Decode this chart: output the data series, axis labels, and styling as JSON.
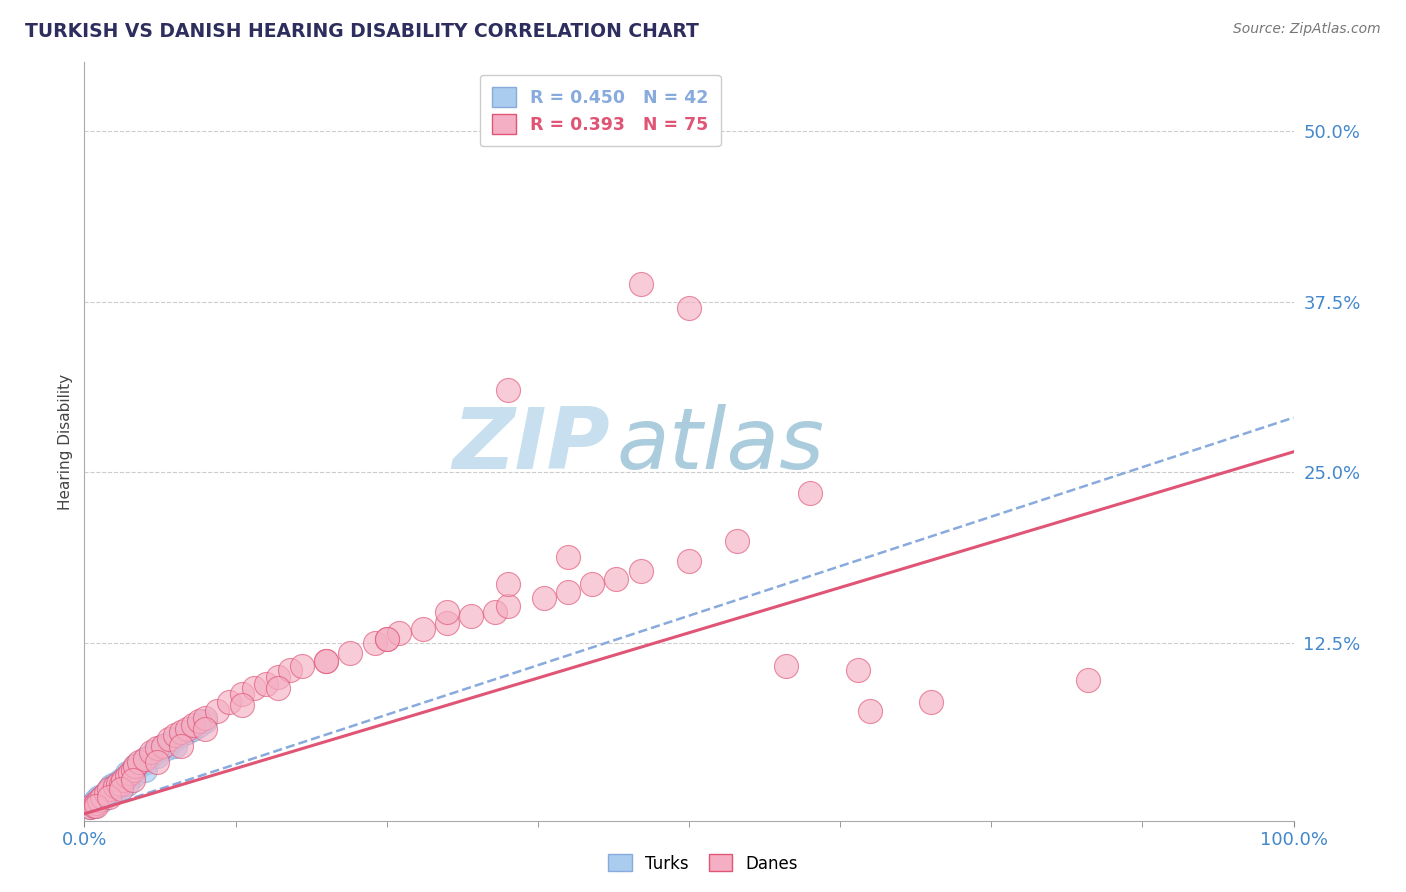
{
  "title": "TURKISH VS DANISH HEARING DISABILITY CORRELATION CHART",
  "title_color": "#2d2d5e",
  "source_text": "Source: ZipAtlas.com",
  "ylabel": "Hearing Disability",
  "xlim": [
    0,
    1.0
  ],
  "ylim": [
    -0.005,
    0.55
  ],
  "yticks": [
    0.0,
    0.125,
    0.25,
    0.375,
    0.5
  ],
  "ytick_labels": [
    "",
    "12.5%",
    "25.0%",
    "37.5%",
    "50.0%"
  ],
  "xtick_labels": [
    "0.0%",
    "100.0%"
  ],
  "legend_r1": "R = 0.450",
  "legend_n1": "N = 42",
  "legend_r2": "R = 0.393",
  "legend_n2": "N = 75",
  "turks_color": "#aaccee",
  "danes_color": "#f4afc4",
  "trendline_turks_color": "#88aadd",
  "trendline_danes_color": "#e05575",
  "background_color": "#ffffff",
  "watermark_zip_color": "#c8dff0",
  "watermark_atlas_color": "#aaccdd",
  "grid_color": "#cccccc",
  "tick_color": "#4488cc",
  "turks_x": [
    0.005,
    0.008,
    0.01,
    0.012,
    0.015,
    0.018,
    0.02,
    0.022,
    0.025,
    0.028,
    0.03,
    0.032,
    0.035,
    0.038,
    0.04,
    0.042,
    0.045,
    0.048,
    0.05,
    0.052,
    0.055,
    0.058,
    0.06,
    0.065,
    0.068,
    0.07,
    0.075,
    0.08,
    0.085,
    0.09,
    0.095,
    0.1,
    0.008,
    0.015,
    0.022,
    0.03,
    0.04,
    0.05,
    0.06,
    0.075,
    0.01,
    0.035
  ],
  "turks_y": [
    0.005,
    0.008,
    0.01,
    0.012,
    0.012,
    0.015,
    0.018,
    0.02,
    0.022,
    0.02,
    0.025,
    0.025,
    0.03,
    0.03,
    0.032,
    0.035,
    0.035,
    0.038,
    0.04,
    0.038,
    0.042,
    0.045,
    0.045,
    0.05,
    0.048,
    0.052,
    0.055,
    0.058,
    0.06,
    0.062,
    0.065,
    0.068,
    0.006,
    0.01,
    0.015,
    0.02,
    0.028,
    0.032,
    0.042,
    0.05,
    0.008,
    0.022
  ],
  "danes_x": [
    0.005,
    0.008,
    0.01,
    0.012,
    0.015,
    0.018,
    0.02,
    0.025,
    0.028,
    0.03,
    0.032,
    0.035,
    0.038,
    0.04,
    0.042,
    0.045,
    0.05,
    0.055,
    0.06,
    0.065,
    0.07,
    0.075,
    0.08,
    0.085,
    0.09,
    0.095,
    0.1,
    0.11,
    0.12,
    0.13,
    0.14,
    0.15,
    0.16,
    0.17,
    0.18,
    0.2,
    0.22,
    0.24,
    0.25,
    0.26,
    0.28,
    0.3,
    0.32,
    0.34,
    0.35,
    0.38,
    0.4,
    0.42,
    0.44,
    0.46,
    0.01,
    0.02,
    0.03,
    0.04,
    0.06,
    0.08,
    0.1,
    0.13,
    0.16,
    0.2,
    0.25,
    0.3,
    0.35,
    0.4,
    0.35,
    0.46,
    0.5,
    0.6,
    0.64,
    0.7,
    0.5,
    0.54,
    0.58,
    0.65,
    0.83
  ],
  "danes_y": [
    0.005,
    0.006,
    0.008,
    0.01,
    0.012,
    0.015,
    0.018,
    0.02,
    0.022,
    0.022,
    0.025,
    0.028,
    0.03,
    0.032,
    0.035,
    0.038,
    0.04,
    0.045,
    0.048,
    0.05,
    0.055,
    0.058,
    0.06,
    0.062,
    0.065,
    0.068,
    0.07,
    0.075,
    0.082,
    0.088,
    0.092,
    0.095,
    0.1,
    0.105,
    0.108,
    0.112,
    0.118,
    0.125,
    0.128,
    0.132,
    0.135,
    0.14,
    0.145,
    0.148,
    0.152,
    0.158,
    0.162,
    0.168,
    0.172,
    0.178,
    0.006,
    0.012,
    0.018,
    0.025,
    0.038,
    0.05,
    0.062,
    0.08,
    0.092,
    0.112,
    0.128,
    0.148,
    0.168,
    0.188,
    0.31,
    0.388,
    0.37,
    0.235,
    0.105,
    0.082,
    0.185,
    0.2,
    0.108,
    0.075,
    0.098
  ],
  "trend_turks_x0": 0.0,
  "trend_turks_y0": 0.0,
  "trend_turks_x1": 1.0,
  "trend_turks_y1": 0.29,
  "trend_danes_x0": 0.0,
  "trend_danes_y0": 0.0,
  "trend_danes_x1": 1.0,
  "trend_danes_y1": 0.265
}
